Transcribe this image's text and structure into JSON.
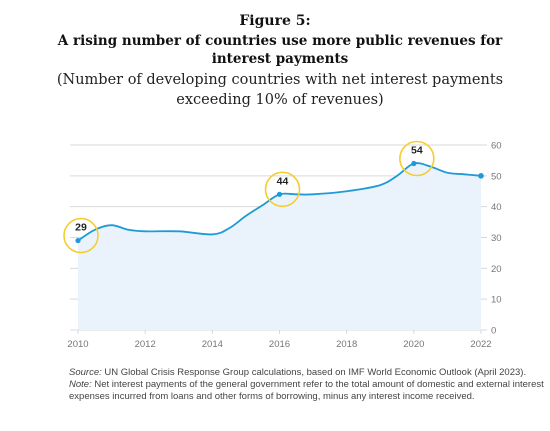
{
  "figure_label": "Figure 5:",
  "title": "A rising number of countries use more public revenues for interest payments",
  "subtitle": "(Number of developing  countries with net interest payments exceeding  10% of revenues)",
  "notes": {
    "source_label": "Source:",
    "source_text": " UN Global Crisis Response Group calculations, based on IMF World Economic Outlook (April 2023).",
    "note_label": "Note:",
    "note_text": " Net interest payments of the general government refer to the total amount of domestic and external interest expenses incurred from loans and other forms of borrowing, minus any interest income received."
  },
  "colors": {
    "line": "#1e9bd7",
    "area": "#eaf3fb",
    "highlight": "#f5cd2f",
    "grid": "#d9d9d9",
    "axis_text": "#777777"
  },
  "chart_data": {
    "type": "area",
    "x": [
      2010,
      2010.5,
      2011,
      2011.5,
      2012,
      2013,
      2014,
      2014.5,
      2015,
      2015.5,
      2016,
      2016.5,
      2017,
      2018,
      2019,
      2019.5,
      2020,
      2020.5,
      2021,
      2021.5,
      2022
    ],
    "y": [
      29,
      32.5,
      34,
      32.5,
      32,
      32,
      31,
      33,
      37,
      40.5,
      44,
      44,
      44,
      45,
      47,
      50,
      54,
      53,
      51,
      50.5,
      50
    ],
    "xlim": [
      2010,
      2022
    ],
    "ylim": [
      0,
      60
    ],
    "xticks": [
      "2010",
      "2012",
      "2014",
      "2016",
      "2018",
      "2020",
      "2022"
    ],
    "yticks": [
      "0",
      "10",
      "20",
      "30",
      "40",
      "50",
      "60"
    ],
    "yaxis_side": "right",
    "grid": true,
    "annotations": [
      {
        "x": 2010,
        "y": 29,
        "label": "29",
        "circled": true
      },
      {
        "x": 2016,
        "y": 44,
        "label": "44",
        "circled": true
      },
      {
        "x": 2020,
        "y": 54,
        "label": "54",
        "circled": true
      }
    ],
    "endpoint_marker": {
      "x": 2022,
      "y": 50
    }
  }
}
